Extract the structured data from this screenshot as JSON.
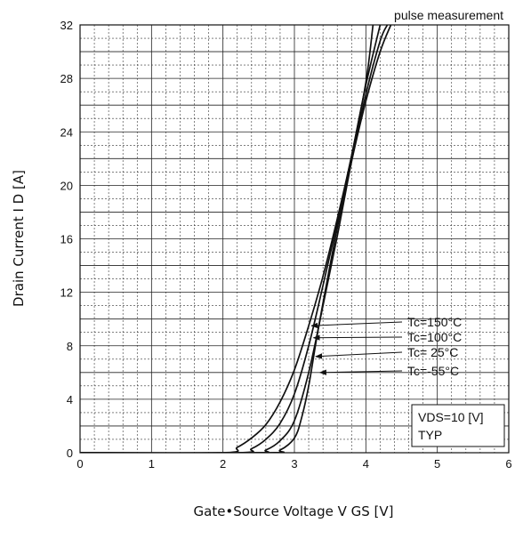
{
  "chart_data": {
    "type": "line",
    "title": "pulse measurement",
    "xlabel": "Gate•Source Voltage  V GS [V]",
    "ylabel": "Drain Current  I D [A]",
    "xlim": [
      0,
      6
    ],
    "ylim": [
      0,
      32
    ],
    "x_ticks": [
      "0",
      "1",
      "2",
      "3",
      "4",
      "5",
      "6"
    ],
    "y_ticks": [
      "0",
      "4",
      "8",
      "12",
      "16",
      "20",
      "24",
      "28",
      "32"
    ],
    "grid": true,
    "condition_box": [
      "VDS=10 [V]",
      "TYP"
    ],
    "series": [
      {
        "name": "Tc=150°C",
        "x": [
          0,
          2.0,
          2.2,
          2.4,
          2.6,
          2.8,
          3.0,
          3.2,
          3.4,
          3.6,
          3.8,
          4.0,
          4.1
        ],
        "y": [
          0,
          0,
          0.4,
          1.1,
          2.1,
          3.8,
          6.2,
          9.5,
          13.2,
          17.5,
          22.2,
          27.7,
          32
        ]
      },
      {
        "name": "Tc=100°C",
        "x": [
          0,
          2.2,
          2.4,
          2.6,
          2.8,
          3.0,
          3.2,
          3.4,
          3.6,
          3.8,
          4.0,
          4.2
        ],
        "y": [
          0,
          0,
          0.3,
          1.0,
          2.2,
          4.4,
          8.0,
          12.5,
          17.2,
          22.2,
          27.5,
          32
        ]
      },
      {
        "name": "Tc= 25°C",
        "x": [
          0,
          2.4,
          2.6,
          2.8,
          3.0,
          3.2,
          3.4,
          3.6,
          3.8,
          4.0,
          4.2,
          4.3
        ],
        "y": [
          0,
          0,
          0.2,
          0.9,
          2.4,
          6.0,
          11.0,
          16.2,
          21.8,
          26.8,
          30.8,
          32
        ]
      },
      {
        "name": "Tc=-55°C",
        "x": [
          0,
          2.6,
          2.8,
          3.0,
          3.1,
          3.2,
          3.3,
          3.4,
          3.6,
          3.8,
          4.0,
          4.2,
          4.35
        ],
        "y": [
          0,
          0,
          0.2,
          1.1,
          2.6,
          5.0,
          8.2,
          11.2,
          16.8,
          21.8,
          26.3,
          30.0,
          32
        ]
      }
    ],
    "annotations": [
      {
        "text": "Tc=150°C",
        "series": 0,
        "x": 3.2,
        "y": 9.5
      },
      {
        "text": "Tc=100°C",
        "series": 1,
        "x": 3.23,
        "y": 8.6
      },
      {
        "text": "Tc= 25°C",
        "series": 2,
        "x": 3.26,
        "y": 7.2
      },
      {
        "text": "Tc=-55°C",
        "series": 3,
        "x": 3.32,
        "y": 6.0
      }
    ]
  }
}
